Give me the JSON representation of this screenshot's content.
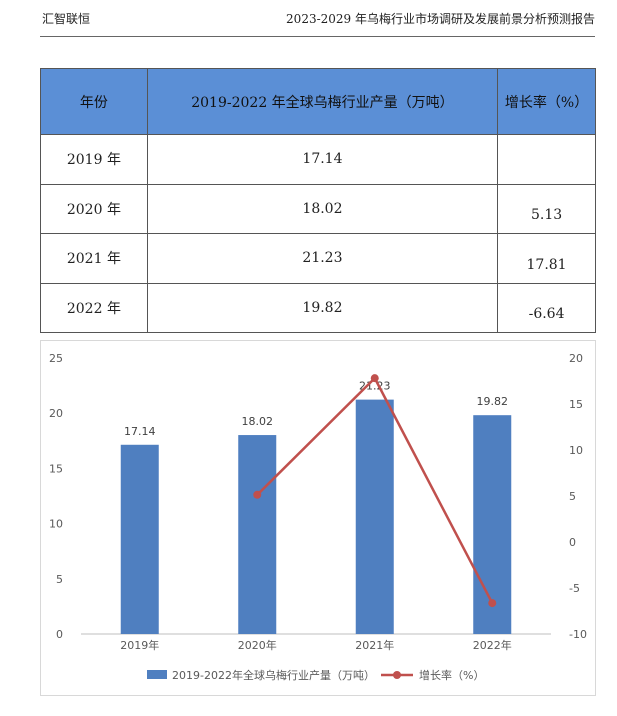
{
  "header": {
    "left": "汇智联恒",
    "right": "2023-2029 年乌梅行业市场调研及发展前景分析预测报告"
  },
  "table": {
    "columns": [
      "年份",
      "2019-2022 年全球乌梅行业产量（万吨）",
      "增长率（%）"
    ],
    "rows": [
      {
        "year": "2019 年",
        "output": "17.14",
        "growth": ""
      },
      {
        "year": "2020 年",
        "output": "18.02",
        "growth": "5.13"
      },
      {
        "year": "2021 年",
        "output": "21.23",
        "growth": "17.81"
      },
      {
        "year": "2022 年",
        "output": "19.82",
        "growth": "-6.64"
      }
    ]
  },
  "chart_data": {
    "type": "bar",
    "categories": [
      "2019年",
      "2020年",
      "2021年",
      "2022年"
    ],
    "series": [
      {
        "name": "2019-2022年全球乌梅行业产量（万吨）",
        "type": "bar",
        "axis": "left",
        "values": [
          17.14,
          18.02,
          21.23,
          19.82
        ],
        "color": "#4f7fc0"
      },
      {
        "name": "增长率（%）",
        "type": "line",
        "axis": "right",
        "values": [
          null,
          5.13,
          17.81,
          -6.64
        ],
        "color": "#c0504d"
      }
    ],
    "data_labels": [
      "17.14",
      "18.02",
      "21.23",
      "19.82"
    ],
    "ylim_left": [
      0,
      25
    ],
    "yticks_left": [
      "0",
      "5",
      "10",
      "15",
      "20",
      "25"
    ],
    "ylim_right": [
      -10,
      20
    ],
    "yticks_right": [
      "-10",
      "-5",
      "0",
      "5",
      "10",
      "15",
      "20"
    ],
    "grid": false,
    "legend_position": "bottom"
  }
}
